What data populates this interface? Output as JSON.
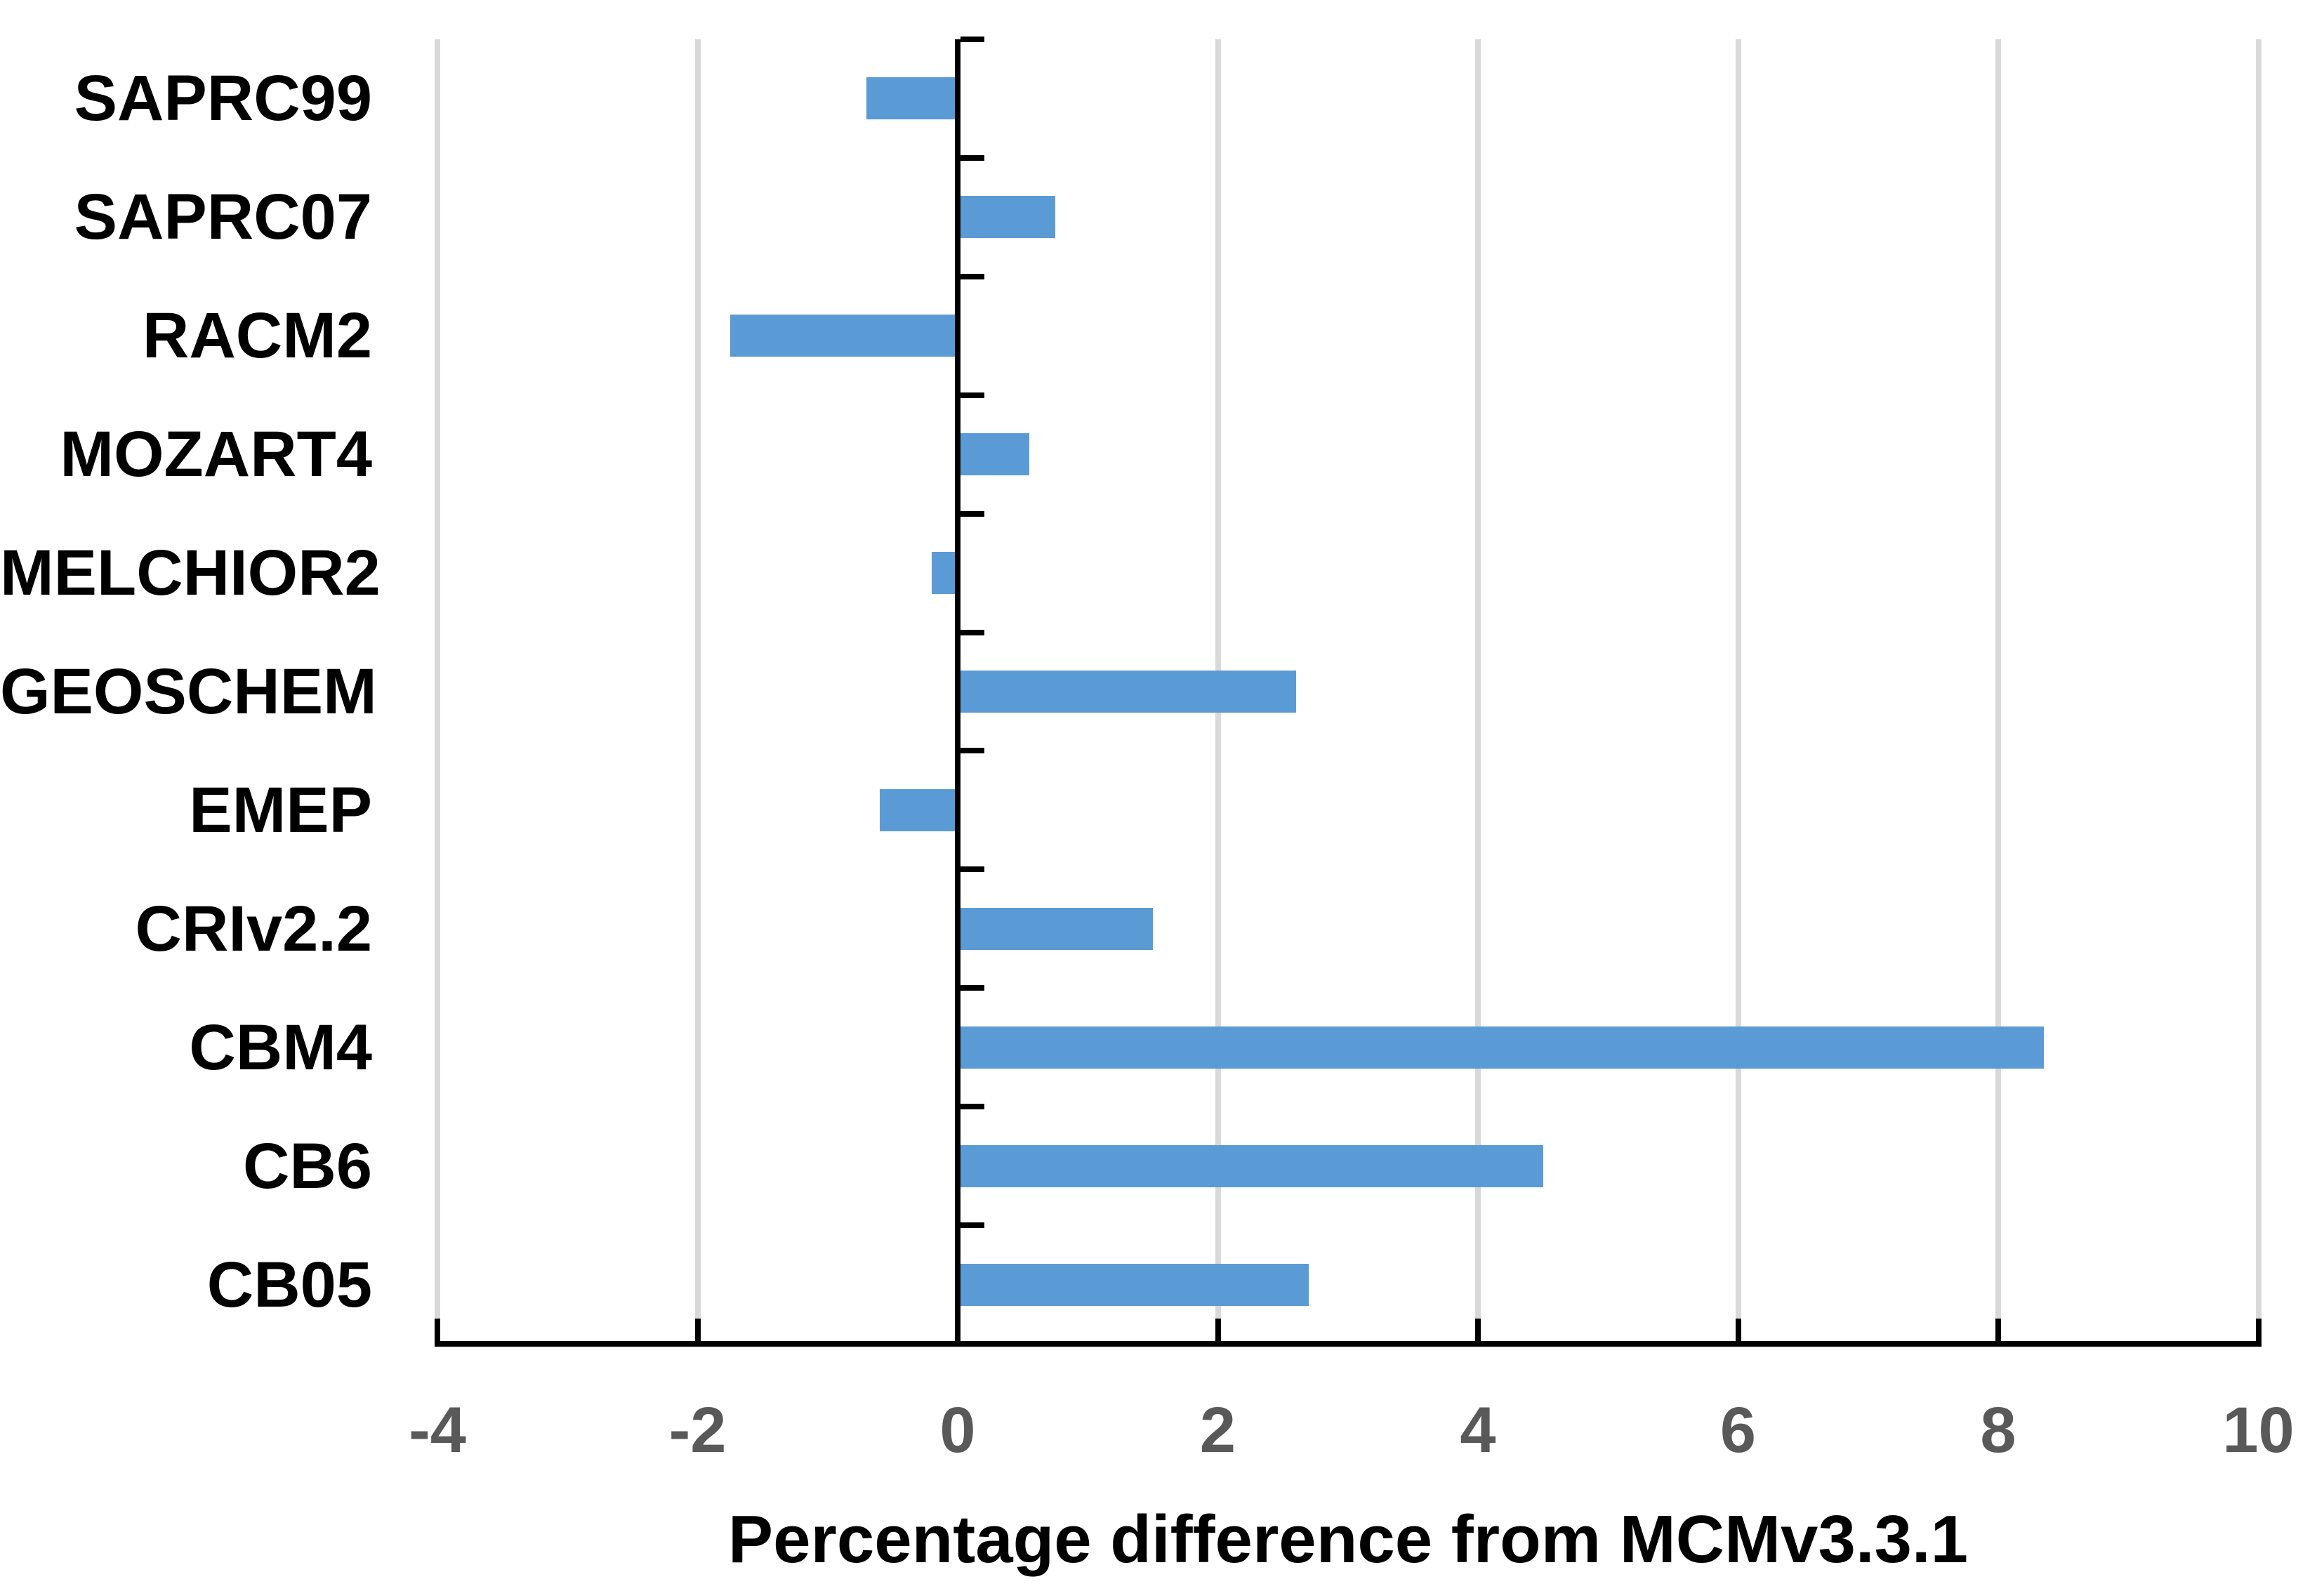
{
  "figure": {
    "background": "#FFFFFF"
  },
  "chart_data": {
    "type": "bar",
    "orientation": "horizontal",
    "title": "",
    "xlabel": "Percentage difference from MCMv3.3.1",
    "ylabel": "",
    "categories": [
      "SAPRC99",
      "SAPRC07",
      "RACM2",
      "MOZART4",
      "MELCHIOR2",
      "GEOSCHEM",
      "EMEP",
      "CRIv2.2",
      "CBM4",
      "CB6",
      "CB05"
    ],
    "values": [
      -0.7,
      0.75,
      -1.75,
      0.55,
      -0.2,
      2.6,
      -0.6,
      1.5,
      8.35,
      4.5,
      2.7
    ],
    "xlim": [
      -4,
      10
    ],
    "xticks": [
      -4,
      -2,
      0,
      2,
      4,
      6,
      8,
      10
    ],
    "grid": true,
    "legend": false,
    "bar_color": "#5B9BD5",
    "gridline_color": "#D9D9D9",
    "axis_color": "#000000",
    "tick_label_color": "#595959",
    "category_label_color": "#000000"
  }
}
